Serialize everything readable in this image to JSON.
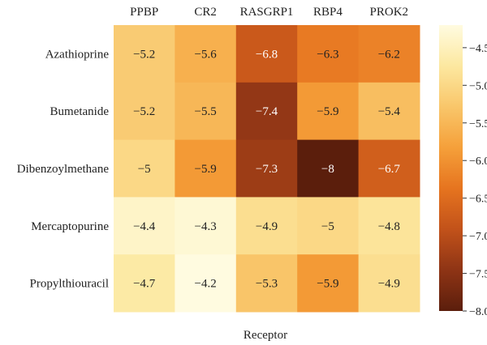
{
  "chart_data": {
    "type": "heatmap",
    "title": "",
    "xlabel": "Receptor",
    "ylabel": "",
    "x_categories": [
      "PPBP",
      "CR2",
      "RASGRP1",
      "RBP4",
      "PROK2"
    ],
    "y_categories": [
      "Azathioprine",
      "Bumetanide",
      "Dibenzoylmethane",
      "Mercaptopurine",
      "Propylthiouracil"
    ],
    "values": [
      [
        -5.2,
        -5.6,
        -6.8,
        -6.3,
        -6.2
      ],
      [
        -5.2,
        -5.5,
        -7.4,
        -5.9,
        -5.4
      ],
      [
        -5.0,
        -5.9,
        -7.3,
        -8.0,
        -6.7
      ],
      [
        -4.4,
        -4.3,
        -4.9,
        -5.0,
        -4.8
      ],
      [
        -4.7,
        -4.2,
        -5.3,
        -5.9,
        -4.9
      ]
    ],
    "value_labels": [
      [
        "−5.2",
        "−5.6",
        "−6.8",
        "−6.3",
        "−6.2"
      ],
      [
        "−5.2",
        "−5.5",
        "−7.4",
        "−5.9",
        "−5.4"
      ],
      [
        "−5",
        "−5.9",
        "−7.3",
        "−8",
        "−6.7"
      ],
      [
        "−4.4",
        "−4.3",
        "−4.9",
        "−5",
        "−4.8"
      ],
      [
        "−4.7",
        "−4.2",
        "−5.3",
        "−5.9",
        "−4.9"
      ]
    ],
    "x_axis_position": "top",
    "colorbar": {
      "min": -8.0,
      "max": -4.2,
      "ticks": [
        -4.5,
        -5.0,
        -5.5,
        -6.0,
        -6.5,
        -7.0,
        -7.5,
        -8.0
      ],
      "tick_labels": [
        "−4.5",
        "−5.0",
        "−5.5",
        "−6.0",
        "−6.5",
        "−7.0",
        "−7.5",
        "−8.0"
      ],
      "position": "right"
    },
    "colormap": [
      "#fffbe0",
      "#fce8a0",
      "#f9c66a",
      "#f5a03a",
      "#e6741f",
      "#c2521a",
      "#8e3415",
      "#5b1e0c"
    ],
    "grid": false
  }
}
